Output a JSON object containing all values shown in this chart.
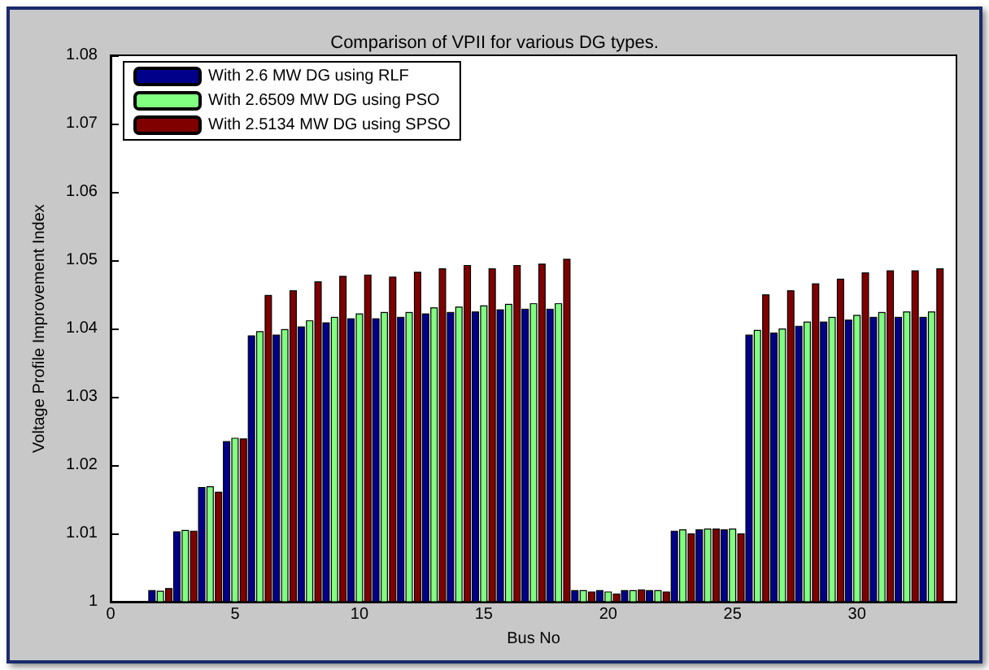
{
  "chart_data": {
    "type": "bar",
    "title": "Comparison of VPII for various DG types.",
    "xlabel": "Bus No",
    "ylabel": "Voltage Profile Improvement Index",
    "x": [
      2,
      3,
      4,
      5,
      6,
      7,
      8,
      9,
      10,
      11,
      12,
      13,
      14,
      15,
      16,
      17,
      18,
      19,
      20,
      21,
      22,
      23,
      24,
      25,
      26,
      27,
      28,
      29,
      30,
      31,
      32,
      33
    ],
    "series": [
      {
        "name": "With 2.6 MW DG using RLF",
        "color": "#00008b",
        "values": [
          1.0017,
          1.0103,
          1.0168,
          1.0235,
          1.039,
          1.0391,
          1.0403,
          1.0409,
          1.0415,
          1.0415,
          1.0417,
          1.0422,
          1.0424,
          1.0425,
          1.0428,
          1.0429,
          1.0429,
          1.0017,
          1.0017,
          1.0017,
          1.0017,
          1.0104,
          1.0106,
          1.0106,
          1.0391,
          1.0394,
          1.0404,
          1.041,
          1.0413,
          1.0417,
          1.0417,
          1.0417
        ]
      },
      {
        "name": "With 2.6509 MW DG using PSO",
        "color": "#80ff80",
        "values": [
          1.0016,
          1.0105,
          1.0169,
          1.024,
          1.0396,
          1.0399,
          1.0412,
          1.0417,
          1.0422,
          1.0424,
          1.0424,
          1.0431,
          1.0432,
          1.0434,
          1.0436,
          1.0437,
          1.0437,
          1.0017,
          1.0015,
          1.0017,
          1.0017,
          1.0106,
          1.0107,
          1.0107,
          1.0398,
          1.04,
          1.041,
          1.0417,
          1.042,
          1.0424,
          1.0425,
          1.0425
        ]
      },
      {
        "name": "With 2.5134 MW DG using SPSO",
        "color": "#800000",
        "values": [
          1.002,
          1.0104,
          1.0161,
          1.0239,
          1.0449,
          1.0456,
          1.0469,
          1.0477,
          1.0479,
          1.0476,
          1.0483,
          1.0488,
          1.0493,
          1.0488,
          1.0493,
          1.0495,
          1.0502,
          1.0015,
          1.0012,
          1.0018,
          1.0015,
          1.01,
          1.0107,
          1.01,
          1.045,
          1.0456,
          1.0466,
          1.0473,
          1.0482,
          1.0485,
          1.0485,
          1.0488
        ]
      }
    ],
    "xlim": [
      0,
      34
    ],
    "xticks": [
      0,
      5,
      10,
      15,
      20,
      25,
      30
    ],
    "ylim": [
      1,
      1.08
    ],
    "yticks": [
      1,
      1.01,
      1.02,
      1.03,
      1.04,
      1.05,
      1.06,
      1.07,
      1.08
    ],
    "grid": false,
    "legend": "top left"
  }
}
